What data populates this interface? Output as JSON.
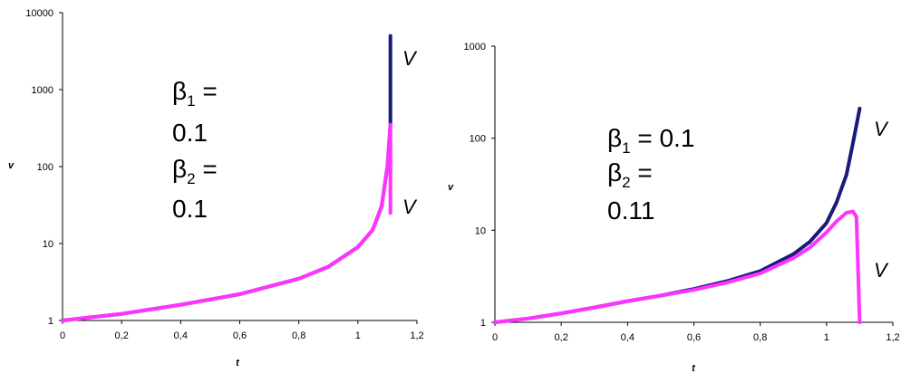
{
  "chart_data": [
    {
      "type": "line",
      "scale_y": "log",
      "xlim": [
        0,
        1.2
      ],
      "ylim": [
        1,
        10000
      ],
      "x_ticks": [
        "0",
        "0,2",
        "0,4",
        "0,6",
        "0,8",
        "1",
        "1,2"
      ],
      "y_ticks": [
        "1",
        "10",
        "100",
        "1000",
        "10000"
      ],
      "xlabel": "t",
      "ylabel": "v",
      "grid": false,
      "colors": {
        "curve_a": "#1a1a7a",
        "curve_b": "#ff33ff"
      },
      "annotation": {
        "beta1_symbol": "β",
        "beta1_sub": "1",
        "beta1_rest": " =",
        "beta1_value": "0.1",
        "beta2_symbol": "β",
        "beta2_sub": "2",
        "beta2_rest": " =",
        "beta2_value": "0.1"
      },
      "series_labels": [
        "V",
        "V"
      ],
      "series": [
        {
          "color": "#1a1a7a",
          "x": [
            0,
            0.2,
            0.4,
            0.6,
            0.8,
            0.9,
            1.0,
            1.05,
            1.08,
            1.1,
            1.11,
            1.11
          ],
          "y": [
            1,
            1.22,
            1.6,
            2.2,
            3.5,
            5,
            9,
            15,
            30,
            100,
            350,
            5000
          ]
        },
        {
          "color": "#ff33ff",
          "x": [
            0,
            0.2,
            0.4,
            0.6,
            0.8,
            0.9,
            1.0,
            1.05,
            1.08,
            1.1,
            1.11,
            1.11
          ],
          "y": [
            1,
            1.22,
            1.6,
            2.2,
            3.5,
            5,
            9,
            15,
            30,
            100,
            350,
            25
          ]
        }
      ]
    },
    {
      "type": "line",
      "scale_y": "log",
      "xlim": [
        0,
        1.2
      ],
      "ylim": [
        1,
        1000
      ],
      "x_ticks": [
        "0",
        "0,2",
        "0,4",
        "0,6",
        "0,8",
        "1",
        "1,2"
      ],
      "y_ticks": [
        "1",
        "10",
        "100",
        "1000"
      ],
      "xlabel": "t",
      "ylabel": "v",
      "grid": false,
      "colors": {
        "curve_a": "#1a1a7a",
        "curve_b": "#ff33ff"
      },
      "annotation": {
        "beta1_symbol": "β",
        "beta1_sub": "1",
        "beta1_rest": " = 0.1",
        "beta2_symbol": "β",
        "beta2_sub": "2",
        "beta2_rest": " =",
        "beta2_value": "0.11"
      },
      "series_labels": [
        "V",
        "V"
      ],
      "series": [
        {
          "color": "#1a1a7a",
          "x": [
            0,
            0.1,
            0.2,
            0.3,
            0.4,
            0.5,
            0.6,
            0.7,
            0.8,
            0.9,
            0.95,
            1.0,
            1.03,
            1.06,
            1.08,
            1.1
          ],
          "y": [
            1,
            1.1,
            1.25,
            1.45,
            1.7,
            1.95,
            2.3,
            2.8,
            3.6,
            5.5,
            7.5,
            12,
            20,
            40,
            90,
            210
          ]
        },
        {
          "color": "#ff33ff",
          "x": [
            0,
            0.1,
            0.2,
            0.3,
            0.4,
            0.5,
            0.6,
            0.7,
            0.8,
            0.9,
            0.95,
            1.0,
            1.03,
            1.06,
            1.08,
            1.09,
            1.1
          ],
          "y": [
            1,
            1.1,
            1.25,
            1.45,
            1.7,
            1.95,
            2.25,
            2.7,
            3.4,
            5.0,
            6.5,
            9.5,
            12.5,
            15.5,
            16,
            14,
            1
          ]
        }
      ]
    }
  ]
}
